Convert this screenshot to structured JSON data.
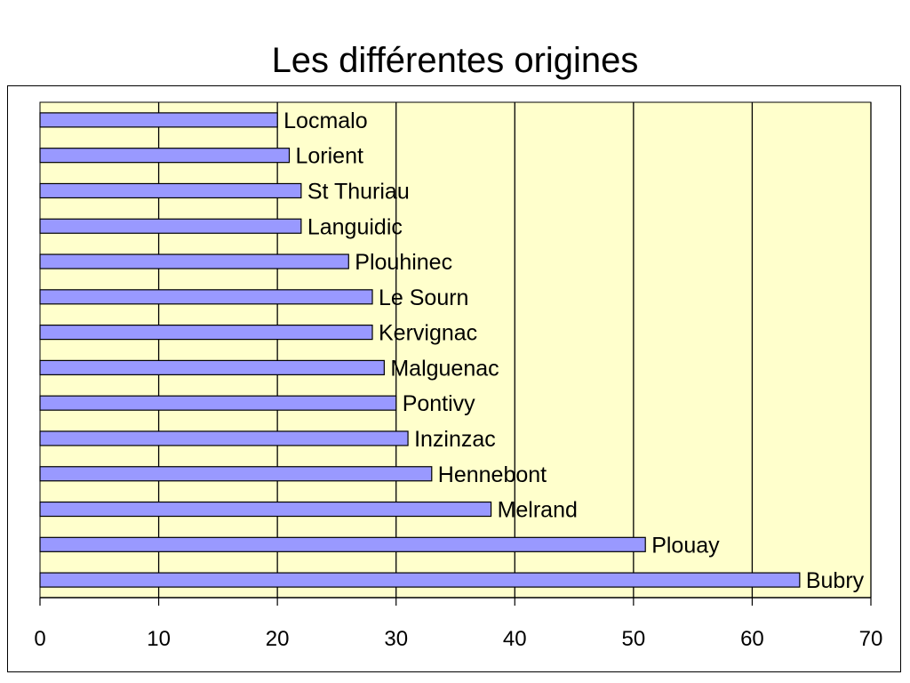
{
  "chart_data": {
    "type": "bar",
    "orientation": "horizontal",
    "title": "Les différentes origines",
    "xlabel": "",
    "ylabel": "",
    "xlim": [
      0,
      70
    ],
    "xticks": [
      0,
      10,
      20,
      30,
      40,
      50,
      60,
      70
    ],
    "grid": true,
    "legend": "none",
    "bar_labels": "inside-end",
    "plot_background": "#FFFFCC",
    "bar_color": "#9999FF",
    "categories": [
      "Locmalo",
      "Lorient",
      "St Thuriau",
      "Languidic",
      "Plouhinec",
      "Le Sourn",
      "Kervignac",
      "Malguenac",
      "Pontivy",
      "Inzinzac",
      "Hennebont",
      "Melrand",
      "Plouay",
      "Bubry"
    ],
    "values": [
      20,
      21,
      22,
      22,
      26,
      28,
      28,
      29,
      30,
      31,
      33,
      38,
      51,
      64
    ]
  }
}
